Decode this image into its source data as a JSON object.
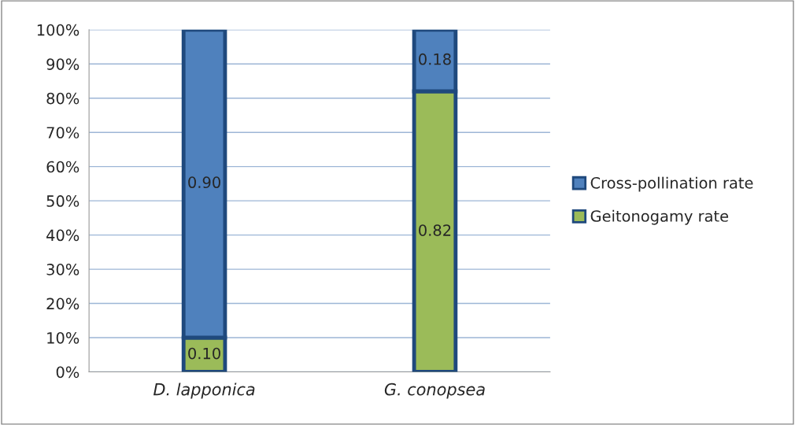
{
  "chart_data": {
    "type": "bar",
    "stacked": true,
    "categories": [
      "D. lapponica",
      "G. conopsea"
    ],
    "series": [
      {
        "name": "Geitonogamy rate",
        "color": "#9bbb59",
        "values": [
          0.1,
          0.82
        ],
        "value_labels": [
          "0.10",
          "0.82"
        ]
      },
      {
        "name": "Cross-pollination rate",
        "color": "#4f81bd",
        "values": [
          0.9,
          0.18
        ],
        "value_labels": [
          "0.90",
          "0.18"
        ]
      }
    ],
    "ylim": [
      0,
      1
    ],
    "yticks": [
      {
        "value": 0,
        "label": "0%"
      },
      {
        "value": 0.1,
        "label": "10%"
      },
      {
        "value": 0.2,
        "label": "20%"
      },
      {
        "value": 0.3,
        "label": "30%"
      },
      {
        "value": 0.4,
        "label": "40%"
      },
      {
        "value": 0.5,
        "label": "50%"
      },
      {
        "value": 0.6,
        "label": "60%"
      },
      {
        "value": 0.7,
        "label": "70%"
      },
      {
        "value": 0.8,
        "label": "80%"
      },
      {
        "value": 0.9,
        "label": "90%"
      },
      {
        "value": 1,
        "label": "100%"
      }
    ],
    "grid": "y",
    "legend": "right"
  }
}
